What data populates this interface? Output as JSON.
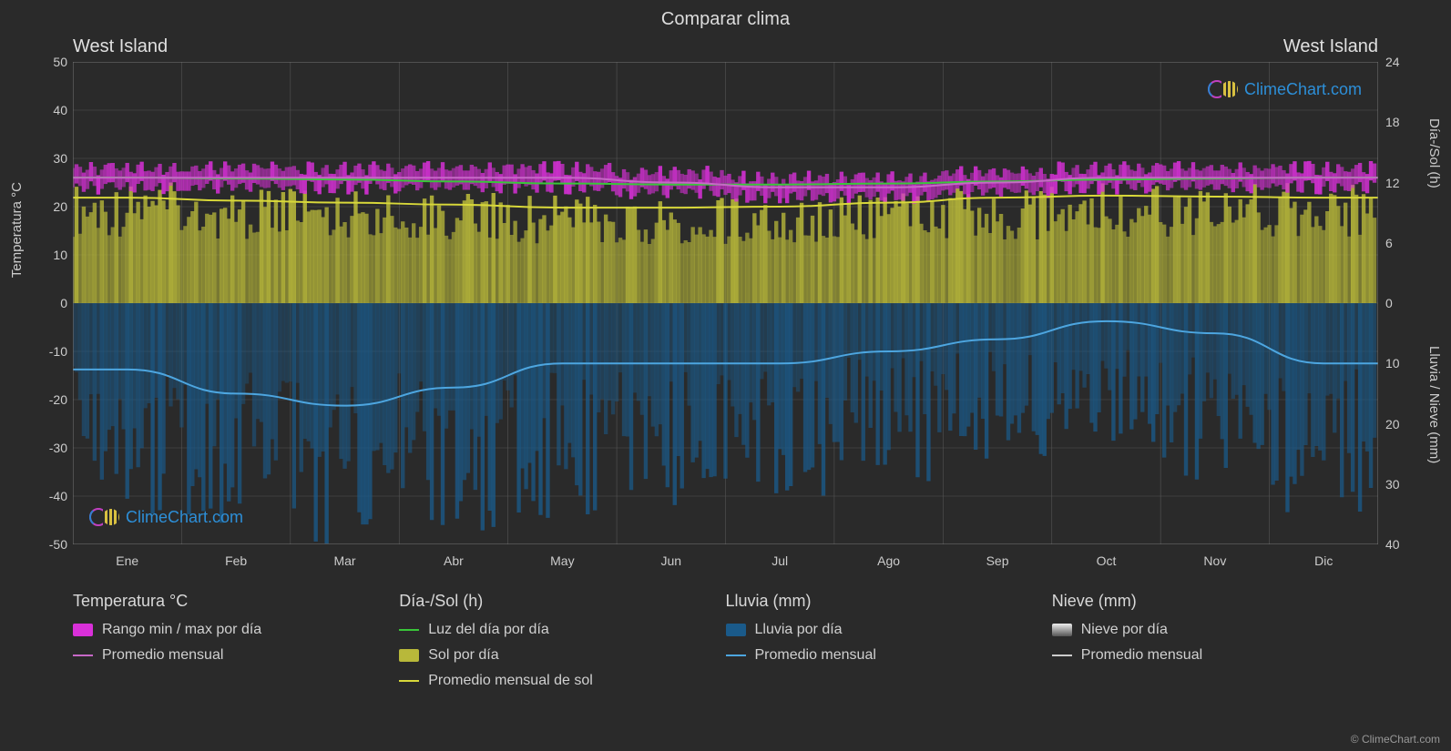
{
  "title": "Comparar clima",
  "location_left": "West Island",
  "location_right": "West Island",
  "y_left_label": "Temperatura °C",
  "y_right_label_top": "Día-/Sol (h)",
  "y_right_label_bottom": "Lluvia / Nieve (mm)",
  "brand": "ClimeChart.com",
  "copyright": "© ClimeChart.com",
  "colors": {
    "background": "#2a2a2a",
    "grid": "#555555",
    "temp_range": "#d930d9",
    "temp_avg": "#c768c7",
    "daylight": "#39c639",
    "sun_fill": "#b8b83a",
    "sun_avg": "#d8d83a",
    "rain_fill": "#1a5a8a",
    "rain_avg": "#4da6e0",
    "snow_fill": "#cccccc",
    "snow_avg": "#cccccc",
    "text": "#d0d0d0"
  },
  "axes": {
    "temp": {
      "min": -50,
      "max": 50,
      "ticks": [
        -50,
        -40,
        -30,
        -20,
        -10,
        0,
        10,
        20,
        30,
        40,
        50
      ]
    },
    "sun": {
      "min": 0,
      "max": 24,
      "ticks": [
        0,
        6,
        12,
        18,
        24
      ]
    },
    "rain": {
      "min": 0,
      "max": 40,
      "ticks": [
        0,
        10,
        20,
        30,
        40
      ]
    },
    "months": [
      "Ene",
      "Feb",
      "Mar",
      "Abr",
      "May",
      "Jun",
      "Jul",
      "Ago",
      "Sep",
      "Oct",
      "Nov",
      "Dic"
    ]
  },
  "series": {
    "temp_max": [
      27,
      27,
      27,
      27,
      27,
      26,
      25,
      25,
      26,
      27,
      27,
      27
    ],
    "temp_min": [
      25,
      25,
      25,
      25,
      25,
      24,
      23,
      23,
      24,
      25,
      25,
      25
    ],
    "temp_avg": [
      26,
      26,
      26,
      26,
      26,
      25,
      24,
      24,
      25,
      26,
      26,
      26
    ],
    "daylight_h": [
      12.5,
      12.4,
      12.3,
      12.1,
      11.9,
      11.8,
      11.8,
      11.9,
      12.1,
      12.3,
      12.4,
      12.5
    ],
    "sun_avg_h": [
      10.5,
      10.2,
      10.0,
      9.8,
      9.5,
      9.5,
      9.6,
      10.0,
      10.5,
      10.7,
      10.6,
      10.5
    ],
    "sun_fill_max": [
      12,
      11.5,
      11.5,
      11,
      10.8,
      10.5,
      10.5,
      11,
      11.5,
      12,
      12,
      12
    ],
    "rain_avg_mm": [
      11,
      15,
      17,
      14,
      10,
      10,
      10,
      8,
      6,
      3,
      5,
      10
    ],
    "rain_fill_max": [
      35,
      38,
      40,
      38,
      36,
      34,
      32,
      30,
      26,
      24,
      30,
      36
    ]
  },
  "legend": {
    "temp": {
      "header": "Temperatura °C",
      "range": "Rango min / max por día",
      "avg": "Promedio mensual"
    },
    "sun": {
      "header": "Día-/Sol (h)",
      "daylight": "Luz del día por día",
      "sunfill": "Sol por día",
      "sunavg": "Promedio mensual de sol"
    },
    "rain": {
      "header": "Lluvia (mm)",
      "fill": "Lluvia por día",
      "avg": "Promedio mensual"
    },
    "snow": {
      "header": "Nieve (mm)",
      "fill": "Nieve por día",
      "avg": "Promedio mensual"
    }
  }
}
